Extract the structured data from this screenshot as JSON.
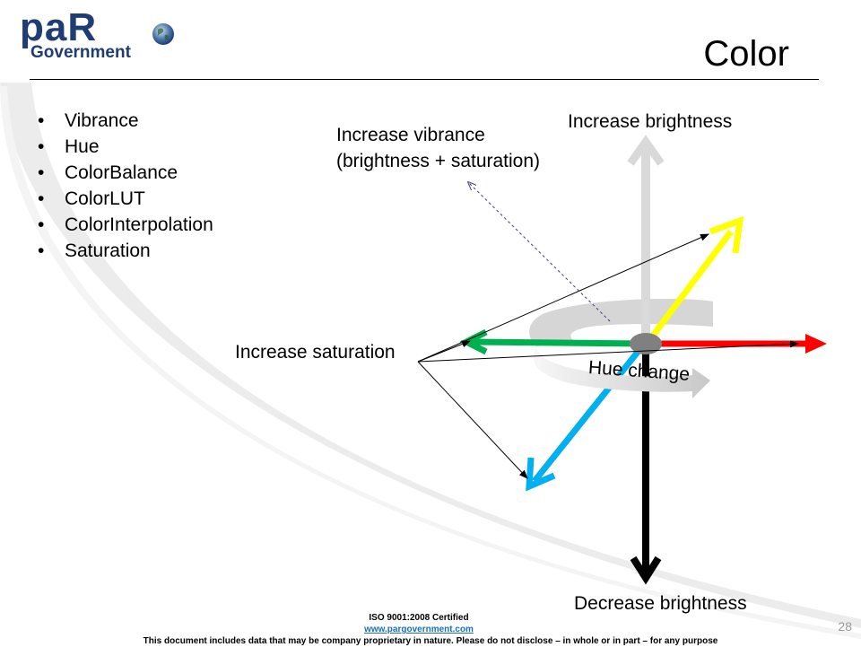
{
  "logo": {
    "brand": "paR",
    "subtitle": "Government"
  },
  "title": "Color",
  "bullets": [
    "Vibrance",
    "Hue",
    "ColorBalance",
    "ColorLUT",
    "ColorInterpolation",
    "Saturation"
  ],
  "diagram": {
    "increase_vibrance": "Increase vibrance",
    "vibrance_detail": "(brightness + saturation)",
    "increase_brightness": "Increase brightness",
    "increase_saturation": "Increase saturation",
    "decrease_brightness": "Decrease brightness",
    "hue_change": "Hue change",
    "colors": {
      "up_arrow": "#d9d9d9",
      "down_arrow": "#000000",
      "yellow": "#ffff00",
      "red": "#ff0000",
      "green": "#00b050",
      "blue": "#00b0f0",
      "ribbon": "#d0d0d0",
      "center": "#808080"
    }
  },
  "footer": {
    "certification": "ISO 9001:2008 Certified",
    "website": "www.pargovernment.com",
    "disclaimer": "This document includes data that may be company proprietary in nature. Please do not disclose – in whole or in part – for any purpose"
  },
  "page_number": "28"
}
